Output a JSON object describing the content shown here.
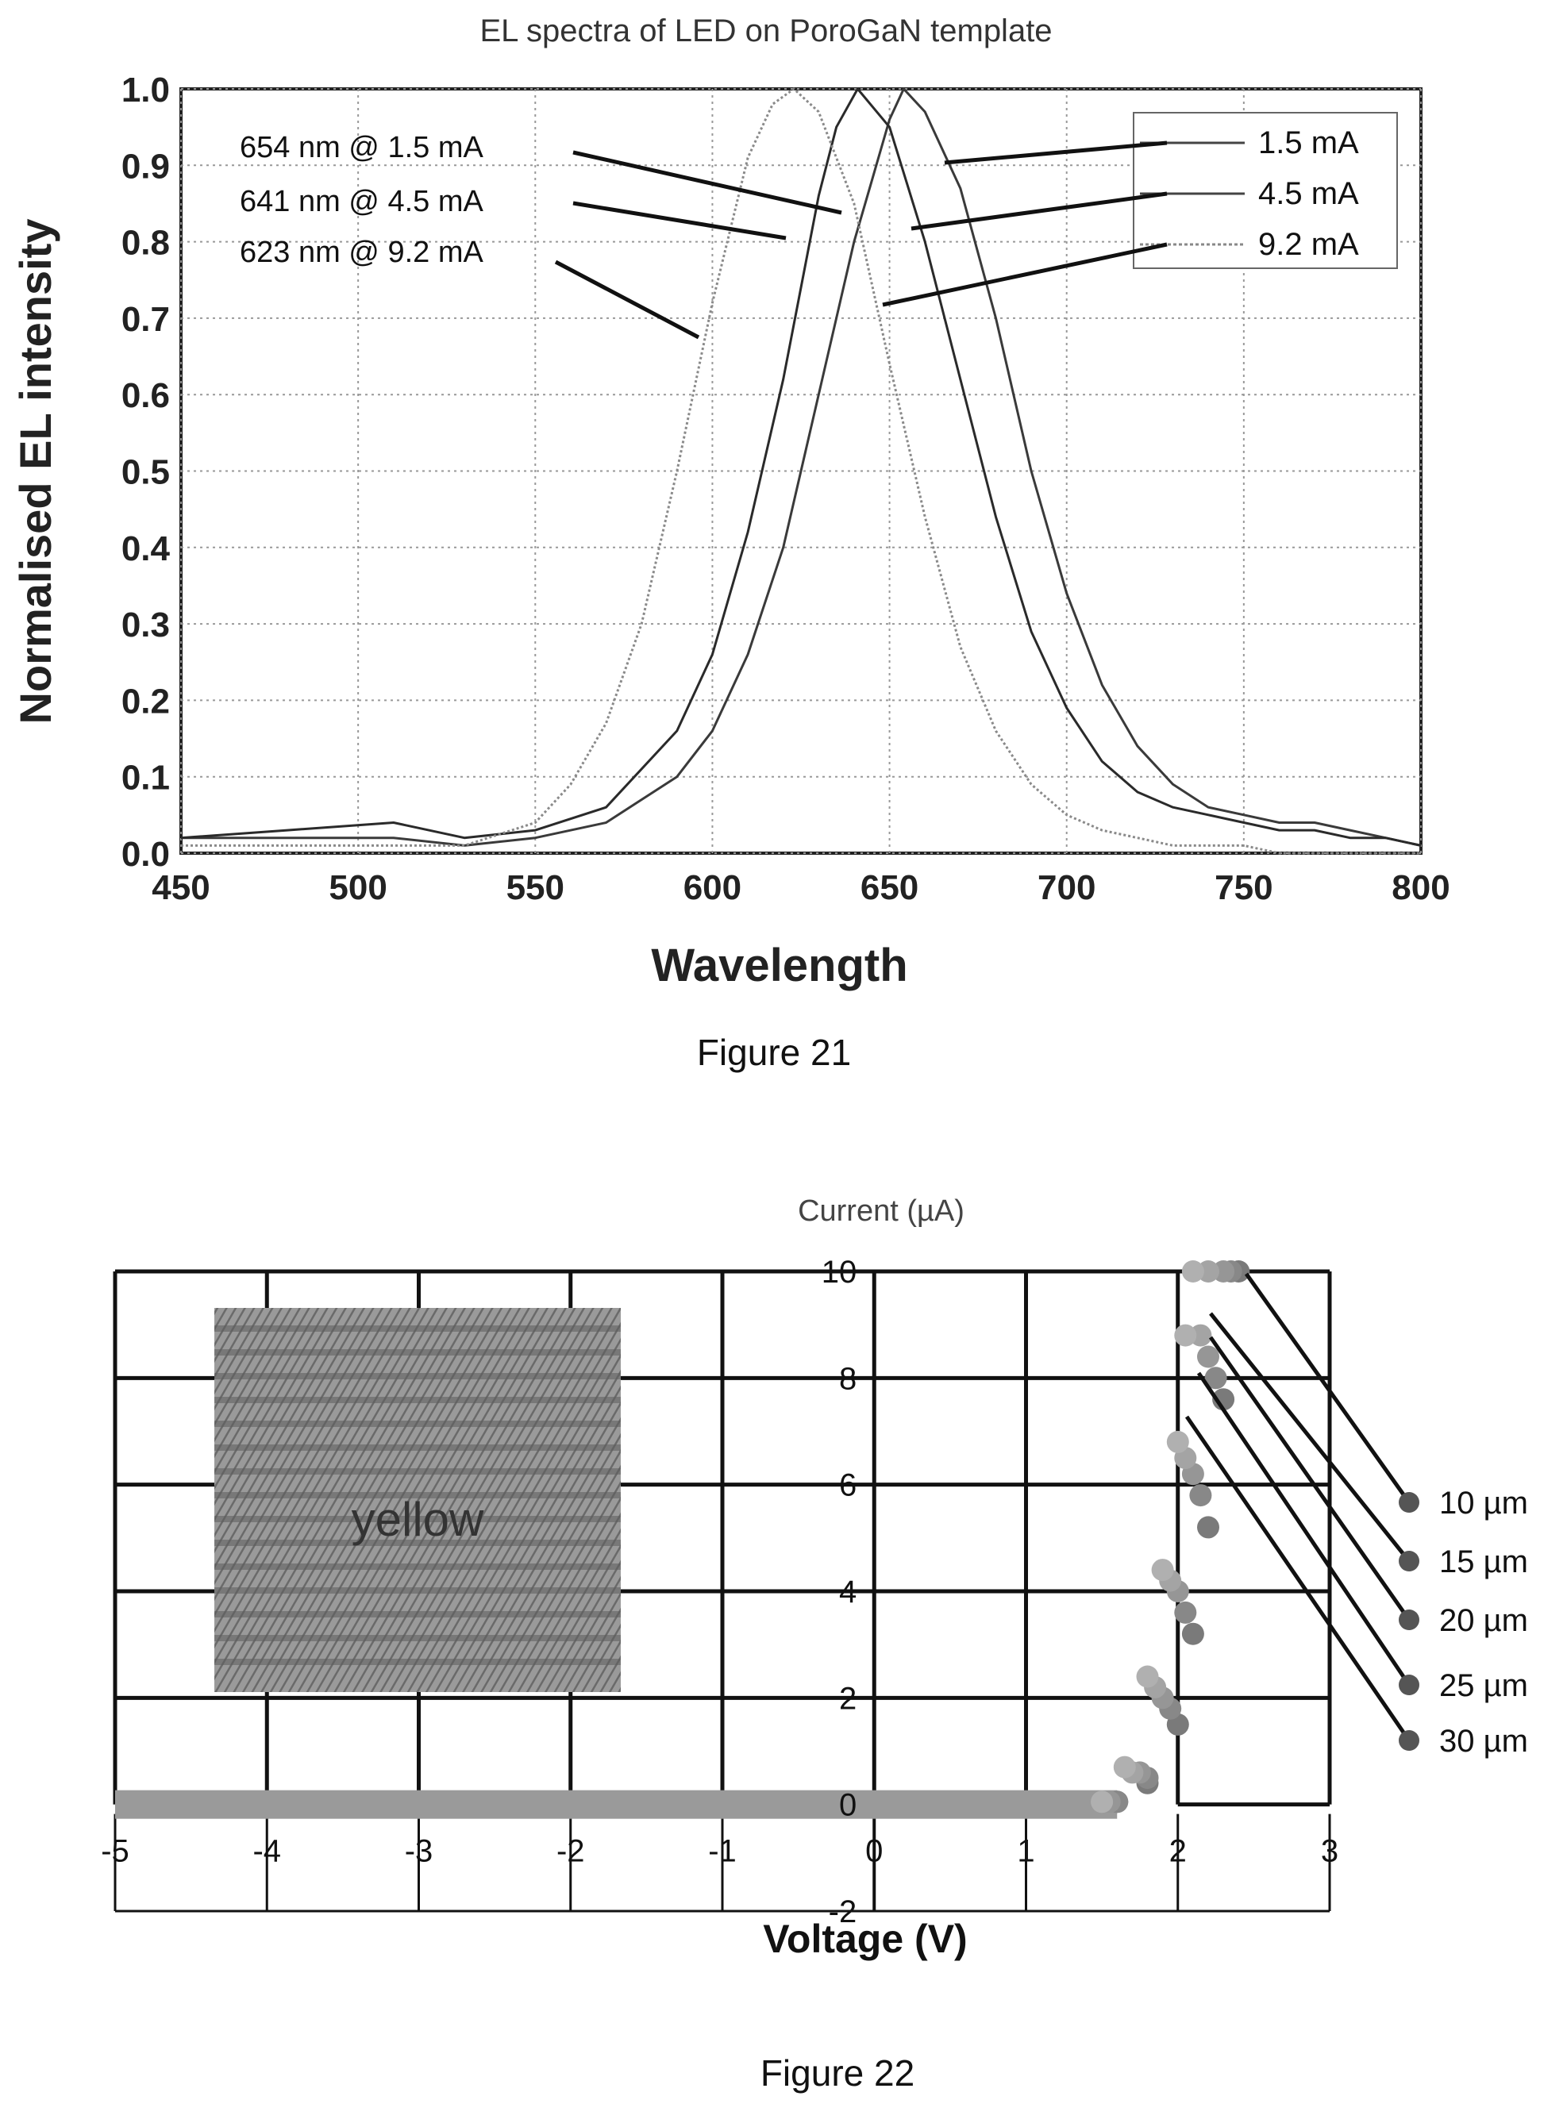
{
  "chart_data": [
    {
      "type": "line",
      "title": "EL spectra of LED on PoroGaN template",
      "xlabel": "Wavelength",
      "ylabel": "Normalised EL intensity",
      "xlim": [
        450,
        800
      ],
      "ylim": [
        0.0,
        1.0
      ],
      "x_ticks": [
        "450",
        "500",
        "550",
        "600",
        "650",
        "700",
        "750",
        "800"
      ],
      "y_ticks": [
        "0.0",
        "0.1",
        "0.2",
        "0.3",
        "0.4",
        "0.5",
        "0.6",
        "0.7",
        "0.8",
        "0.9",
        "1.0"
      ],
      "grid": true,
      "legend": "top-right",
      "caption": "Figure 21",
      "series": [
        {
          "name": "1.5 mA",
          "peak_nm": 654,
          "x": [
            450,
            480,
            510,
            530,
            550,
            570,
            590,
            600,
            610,
            620,
            630,
            640,
            645,
            650,
            654,
            660,
            670,
            680,
            690,
            700,
            710,
            720,
            730,
            740,
            750,
            760,
            770,
            780,
            790,
            800
          ],
          "values": [
            0.02,
            0.02,
            0.02,
            0.01,
            0.02,
            0.04,
            0.1,
            0.16,
            0.26,
            0.4,
            0.6,
            0.8,
            0.88,
            0.96,
            1.0,
            0.97,
            0.87,
            0.7,
            0.5,
            0.34,
            0.22,
            0.14,
            0.09,
            0.06,
            0.05,
            0.04,
            0.04,
            0.03,
            0.02,
            0.01
          ]
        },
        {
          "name": "4.5 mA",
          "peak_nm": 641,
          "x": [
            450,
            480,
            510,
            530,
            550,
            570,
            590,
            600,
            610,
            620,
            630,
            635,
            641,
            650,
            660,
            670,
            680,
            690,
            700,
            710,
            720,
            730,
            740,
            750,
            760,
            770,
            780,
            790,
            800
          ],
          "values": [
            0.02,
            0.03,
            0.04,
            0.02,
            0.03,
            0.06,
            0.16,
            0.26,
            0.42,
            0.62,
            0.86,
            0.95,
            1.0,
            0.95,
            0.8,
            0.62,
            0.44,
            0.29,
            0.19,
            0.12,
            0.08,
            0.06,
            0.05,
            0.04,
            0.03,
            0.03,
            0.02,
            0.02,
            0.01
          ]
        },
        {
          "name": "9.2 mA",
          "peak_nm": 623,
          "x": [
            450,
            480,
            510,
            530,
            550,
            560,
            570,
            580,
            590,
            600,
            610,
            617,
            623,
            630,
            640,
            650,
            660,
            670,
            680,
            690,
            700,
            710,
            720,
            730,
            740,
            750,
            760,
            770,
            780,
            790,
            800
          ],
          "values": [
            0.01,
            0.01,
            0.01,
            0.01,
            0.04,
            0.09,
            0.17,
            0.3,
            0.5,
            0.72,
            0.91,
            0.98,
            1.0,
            0.97,
            0.85,
            0.64,
            0.44,
            0.27,
            0.16,
            0.09,
            0.05,
            0.03,
            0.02,
            0.01,
            0.01,
            0.01,
            0.0,
            0.0,
            0.0,
            0.0,
            0.0
          ]
        }
      ],
      "annotations": [
        "654 nm @ 1.5 mA",
        "641 nm @ 4.5 mA",
        "623 nm @ 9.2 mA"
      ]
    },
    {
      "type": "scatter",
      "title": "",
      "xlabel": "Voltage (V)",
      "ylabel": "Current (µA)",
      "xlim": [
        -5,
        3
      ],
      "ylim": [
        -2,
        10
      ],
      "x_ticks": [
        "-5",
        "-4",
        "-3",
        "-2",
        "-1",
        "0",
        "1",
        "2",
        "3"
      ],
      "y_ticks": [
        "-2",
        "0",
        "2",
        "4",
        "6",
        "8",
        "10"
      ],
      "grid": true,
      "inset_label": "yellow",
      "caption": "Figure 22",
      "series": [
        {
          "name": "10 µm",
          "x": [
            -5,
            -3,
            -1,
            1,
            1.6,
            1.8,
            2.0,
            2.1,
            2.2,
            2.3,
            2.4
          ],
          "values": [
            0,
            0,
            0,
            0,
            0.05,
            0.4,
            1.5,
            3.2,
            5.2,
            7.6,
            10.0
          ]
        },
        {
          "name": "15 µm",
          "x": [
            -5,
            -3,
            -1,
            1,
            1.6,
            1.8,
            1.95,
            2.05,
            2.15,
            2.25,
            2.35
          ],
          "values": [
            0,
            0,
            0,
            0,
            0.05,
            0.5,
            1.8,
            3.6,
            5.8,
            8.0,
            10.0
          ]
        },
        {
          "name": "20 µm",
          "x": [
            -5,
            -3,
            -1,
            1,
            1.55,
            1.75,
            1.9,
            2.0,
            2.1,
            2.2,
            2.3
          ],
          "values": [
            0,
            0,
            0,
            0,
            0.05,
            0.6,
            2.0,
            4.0,
            6.2,
            8.4,
            10.0
          ]
        },
        {
          "name": "25 µm",
          "x": [
            -5,
            -3,
            -1,
            1,
            1.5,
            1.7,
            1.85,
            1.95,
            2.05,
            2.15,
            2.2
          ],
          "values": [
            0,
            0,
            0,
            0,
            0.05,
            0.6,
            2.2,
            4.2,
            6.5,
            8.8,
            10.0
          ]
        },
        {
          "name": "30 µm",
          "x": [
            -5,
            -3,
            -1,
            1,
            1.5,
            1.65,
            1.8,
            1.9,
            2.0,
            2.05,
            2.1
          ],
          "values": [
            0,
            0,
            0,
            0,
            0.05,
            0.7,
            2.4,
            4.4,
            6.8,
            8.8,
            10.0
          ]
        }
      ]
    }
  ]
}
